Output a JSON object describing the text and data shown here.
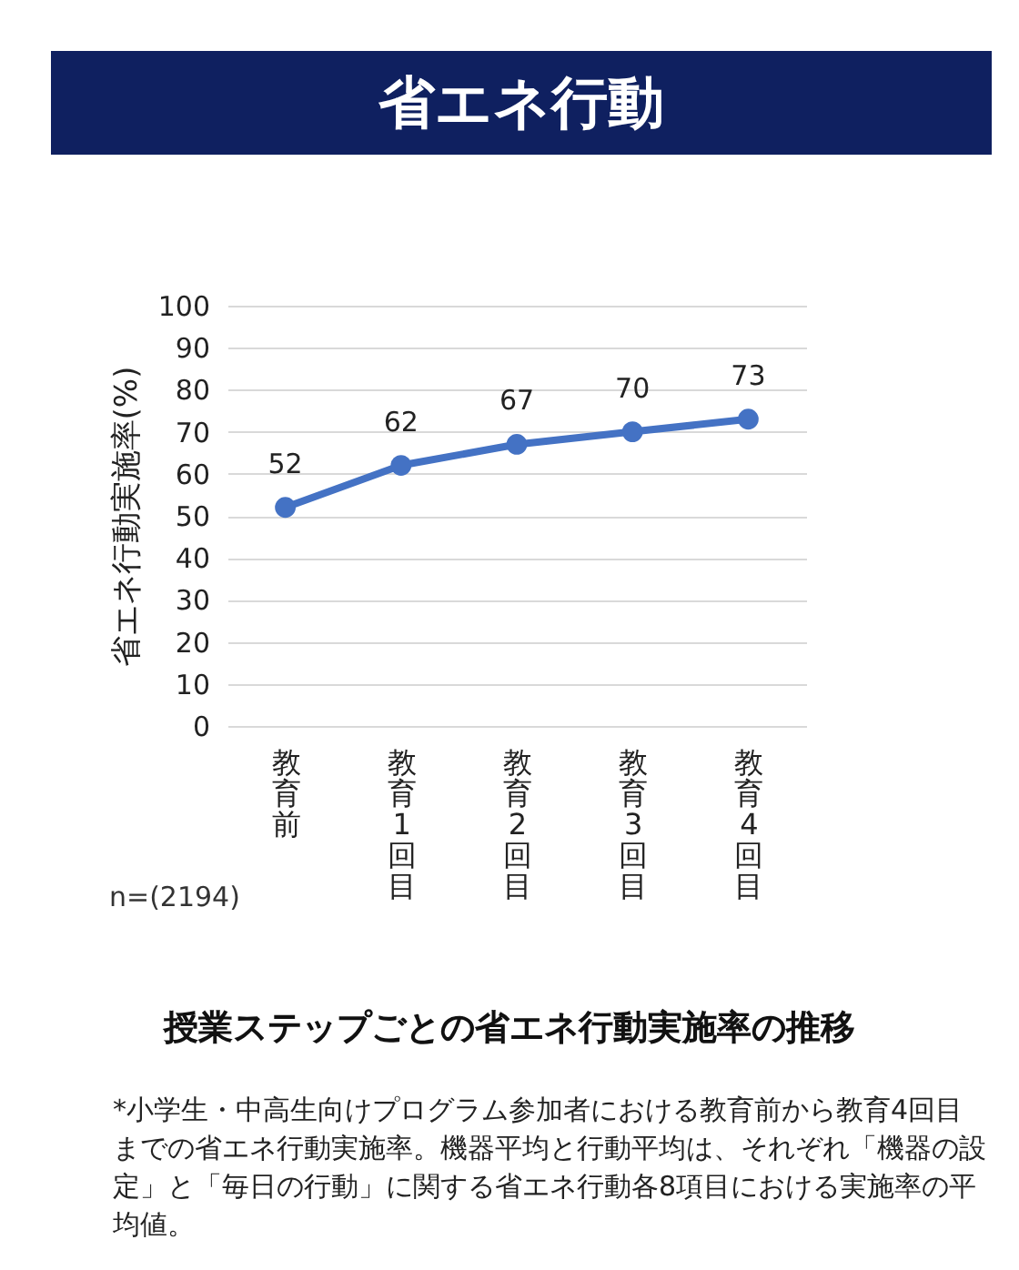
{
  "chart_data": {
    "type": "line",
    "title": "省エネ行動",
    "subtitle": "授業ステップごとの省エネ行動実施率の推移",
    "ylabel": "省エネ行動実施率(%)",
    "categories": [
      "教育前",
      "教育1回目",
      "教育2回目",
      "教育3回目",
      "教育4回目"
    ],
    "series": [
      {
        "color": "#4472c4",
        "values": [
          52,
          62,
          67,
          70,
          73
        ]
      }
    ],
    "ylim": [
      0,
      100
    ],
    "yticks": [
      0,
      10,
      20,
      30,
      40,
      50,
      60,
      70,
      80,
      90,
      100
    ],
    "grid": "y",
    "marker": "circle",
    "data_labels": true,
    "annotations": [
      "n=(2194)",
      "*小学生・中高生向けプログラム参加者における教育前から教育4回目までの省エネ行動実施率。機器平均と行動平均は、それぞれ「機器の設定」と「毎日の行動」に関する省エネ行動各8項目における実施率の平均値。"
    ]
  }
}
